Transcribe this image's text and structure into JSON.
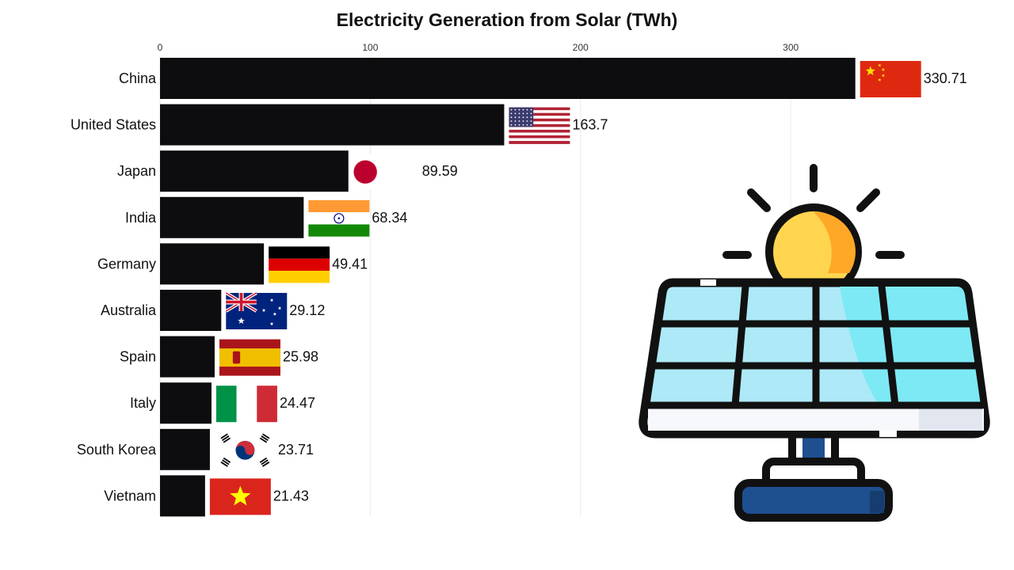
{
  "chart_data": {
    "type": "bar",
    "orientation": "horizontal",
    "title": "Electricity Generation from Solar (TWh)",
    "xlabel": "",
    "ylabel": "",
    "xlim": [
      0,
      330.71
    ],
    "x_ticks": [
      0,
      100,
      200,
      300
    ],
    "grid": "vertical",
    "categories": [
      "China",
      "United States",
      "Japan",
      "India",
      "Germany",
      "Australia",
      "Spain",
      "Italy",
      "South Korea",
      "Vietnam"
    ],
    "values": [
      330.71,
      163.7,
      89.59,
      68.34,
      49.41,
      29.12,
      25.98,
      24.47,
      23.71,
      21.43
    ],
    "value_labels": [
      "330.71",
      "163.7",
      "89.59",
      "68.34",
      "49.41",
      "29.12",
      "25.98",
      "24.47",
      "23.71",
      "21.43"
    ],
    "flags": [
      "china-flag-icon",
      "usa-flag-icon",
      "japan-flag-icon",
      "india-flag-icon",
      "germany-flag-icon",
      "australia-flag-icon",
      "spain-flag-icon",
      "italy-flag-icon",
      "south-korea-flag-icon",
      "vietnam-flag-icon"
    ],
    "bar_color": "#0d0d0f"
  },
  "illustration": {
    "icon": "solar-panel-sun-icon"
  }
}
